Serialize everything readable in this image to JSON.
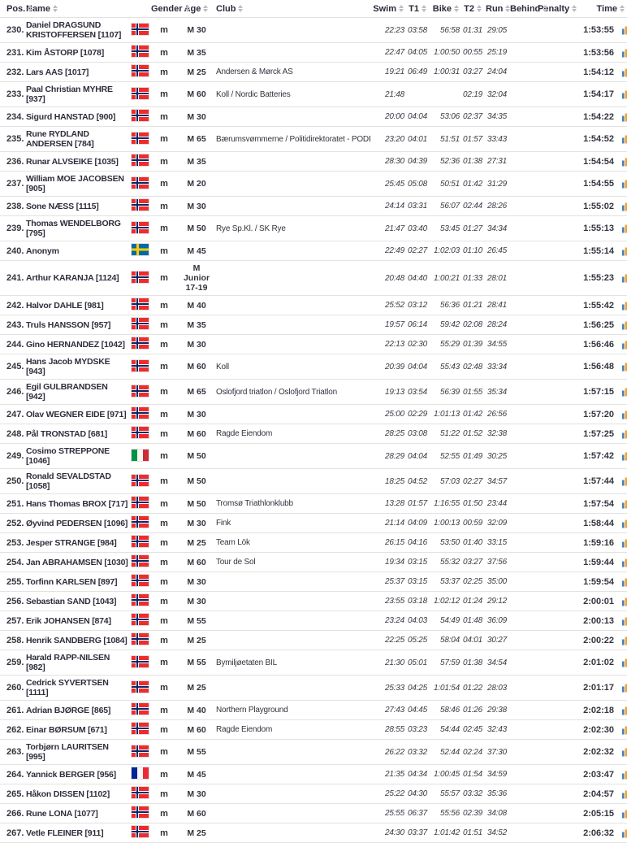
{
  "header": {
    "columns": [
      {
        "key": "pos",
        "label": "Pos."
      },
      {
        "key": "name",
        "label": "Name"
      },
      {
        "key": "flag",
        "label": ""
      },
      {
        "key": "gender",
        "label": "Gender"
      },
      {
        "key": "age",
        "label": "Age"
      },
      {
        "key": "club",
        "label": "Club"
      },
      {
        "key": "swim",
        "label": "Swim"
      },
      {
        "key": "t1",
        "label": "T1"
      },
      {
        "key": "bike",
        "label": "Bike"
      },
      {
        "key": "t2",
        "label": "T2"
      },
      {
        "key": "run",
        "label": "Run"
      },
      {
        "key": "behind",
        "label": "Behind"
      },
      {
        "key": "penalty",
        "label": "Penalty"
      },
      {
        "key": "time",
        "label": "Time"
      }
    ]
  },
  "colors": {
    "header_text": "#2b2b3a",
    "body_text": "#33333d",
    "row_border": "#e2e2e2",
    "sort_icon": "#bdbdbd",
    "flag_norway_red": "#ef2b2d",
    "flag_norway_blue": "#002868",
    "flag_sweden_blue": "#006aa7",
    "flag_sweden_yellow": "#fecc00",
    "flag_italy_green": "#009246",
    "flag_italy_red": "#ce2b37",
    "flag_france_blue": "#002395",
    "flag_france_red": "#ed2939",
    "detail_icon_blue": "#4a7ebb",
    "detail_icon_orange": "#f0a030",
    "detail_icon_red": "#d04a3a"
  },
  "rows": [
    {
      "pos": "230.",
      "name": "Daniel DRAGSUND KRISTOFFERSEN [1107]",
      "flag": "norway",
      "gender": "m",
      "age": "M 30",
      "club": "",
      "swim": "22:23",
      "t1": "03:58",
      "bike": "56:58",
      "t2": "01:31",
      "run": "29:05",
      "behind": "",
      "penalty": "",
      "time": "1:53:55"
    },
    {
      "pos": "231.",
      "name": "Kim ÅSTORP [1078]",
      "flag": "norway",
      "gender": "m",
      "age": "M 35",
      "club": "",
      "swim": "22:47",
      "t1": "04:05",
      "bike": "1:00:50",
      "t2": "00:55",
      "run": "25:19",
      "behind": "",
      "penalty": "",
      "time": "1:53:56"
    },
    {
      "pos": "232.",
      "name": "Lars AAS [1017]",
      "flag": "norway",
      "gender": "m",
      "age": "M 25",
      "club": "Andersen & Mørck AS",
      "swim": "19:21",
      "t1": "06:49",
      "bike": "1:00:31",
      "t2": "03:27",
      "run": "24:04",
      "behind": "",
      "penalty": "",
      "time": "1:54:12"
    },
    {
      "pos": "233.",
      "name": "Paal Christian MYHRE [937]",
      "flag": "norway",
      "gender": "m",
      "age": "M 60",
      "club": "Koll / Nordic Batteries",
      "swim": "21:48",
      "t1": "",
      "bike": "",
      "t2": "02:19",
      "run": "32:04",
      "behind": "",
      "penalty": "",
      "time": "1:54:17"
    },
    {
      "pos": "234.",
      "name": "Sigurd HANSTAD [900]",
      "flag": "norway",
      "gender": "m",
      "age": "M 30",
      "club": "",
      "swim": "20:00",
      "t1": "04:04",
      "bike": "53:06",
      "t2": "02:37",
      "run": "34:35",
      "behind": "",
      "penalty": "",
      "time": "1:54:22"
    },
    {
      "pos": "235.",
      "name": "Rune RYDLAND ANDERSEN [784]",
      "flag": "norway",
      "gender": "m",
      "age": "M 65",
      "club": "Bærumsvømmerne / Politidirektoratet - PODBIL",
      "swim": "23:20",
      "t1": "04:01",
      "bike": "51:51",
      "t2": "01:57",
      "run": "33:43",
      "behind": "",
      "penalty": "",
      "time": "1:54:52"
    },
    {
      "pos": "236.",
      "name": "Runar ALVSEIKE [1035]",
      "flag": "norway",
      "gender": "m",
      "age": "M 35",
      "club": "",
      "swim": "28:30",
      "t1": "04:39",
      "bike": "52:36",
      "t2": "01:38",
      "run": "27:31",
      "behind": "",
      "penalty": "",
      "time": "1:54:54"
    },
    {
      "pos": "237.",
      "name": "William MOE JACOBSEN [905]",
      "flag": "norway",
      "gender": "m",
      "age": "M 20",
      "club": "",
      "swim": "25:45",
      "t1": "05:08",
      "bike": "50:51",
      "t2": "01:42",
      "run": "31:29",
      "behind": "",
      "penalty": "",
      "time": "1:54:55"
    },
    {
      "pos": "238.",
      "name": "Sone NÆSS [1115]",
      "flag": "norway",
      "gender": "m",
      "age": "M 30",
      "club": "",
      "swim": "24:14",
      "t1": "03:31",
      "bike": "56:07",
      "t2": "02:44",
      "run": "28:26",
      "behind": "",
      "penalty": "",
      "time": "1:55:02"
    },
    {
      "pos": "239.",
      "name": "Thomas WENDELBORG [795]",
      "flag": "norway",
      "gender": "m",
      "age": "M 50",
      "club": "Rye Sp.Kl. / SK Rye",
      "swim": "21:47",
      "t1": "03:40",
      "bike": "53:45",
      "t2": "01:27",
      "run": "34:34",
      "behind": "",
      "penalty": "",
      "time": "1:55:13"
    },
    {
      "pos": "240.",
      "name": "Anonym",
      "flag": "sweden",
      "gender": "m",
      "age": "M 45",
      "club": "",
      "swim": "22:49",
      "t1": "02:27",
      "bike": "1:02:03",
      "t2": "01:10",
      "run": "26:45",
      "behind": "",
      "penalty": "",
      "time": "1:55:14"
    },
    {
      "pos": "241.",
      "name": "Arthur KARANJA [1124]",
      "flag": "norway",
      "gender": "m",
      "age": "M Junior 17-19",
      "club": "",
      "swim": "20:48",
      "t1": "04:40",
      "bike": "1:00:21",
      "t2": "01:33",
      "run": "28:01",
      "behind": "",
      "penalty": "",
      "time": "1:55:23"
    },
    {
      "pos": "242.",
      "name": "Halvor DAHLE [981]",
      "flag": "norway",
      "gender": "m",
      "age": "M 40",
      "club": "",
      "swim": "25:52",
      "t1": "03:12",
      "bike": "56:36",
      "t2": "01:21",
      "run": "28:41",
      "behind": "",
      "penalty": "",
      "time": "1:55:42"
    },
    {
      "pos": "243.",
      "name": "Truls HANSSON [957]",
      "flag": "norway",
      "gender": "m",
      "age": "M 35",
      "club": "",
      "swim": "19:57",
      "t1": "06:14",
      "bike": "59:42",
      "t2": "02:08",
      "run": "28:24",
      "behind": "",
      "penalty": "",
      "time": "1:56:25"
    },
    {
      "pos": "244.",
      "name": "Gino HERNANDEZ [1042]",
      "flag": "norway",
      "gender": "m",
      "age": "M 30",
      "club": "",
      "swim": "22:13",
      "t1": "02:30",
      "bike": "55:29",
      "t2": "01:39",
      "run": "34:55",
      "behind": "",
      "penalty": "",
      "time": "1:56:46"
    },
    {
      "pos": "245.",
      "name": "Hans Jacob MYDSKE [943]",
      "flag": "norway",
      "gender": "m",
      "age": "M 60",
      "club": "Koll",
      "swim": "20:39",
      "t1": "04:04",
      "bike": "55:43",
      "t2": "02:48",
      "run": "33:34",
      "behind": "",
      "penalty": "",
      "time": "1:56:48"
    },
    {
      "pos": "246.",
      "name": "Egil GULBRANDSEN [942]",
      "flag": "norway",
      "gender": "m",
      "age": "M 65",
      "club": "Oslofjord triatlon / Oslofjord Triatlon",
      "swim": "19:13",
      "t1": "03:54",
      "bike": "56:39",
      "t2": "01:55",
      "run": "35:34",
      "behind": "",
      "penalty": "",
      "time": "1:57:15"
    },
    {
      "pos": "247.",
      "name": "Olav WEGNER EIDE [971]",
      "flag": "norway",
      "gender": "m",
      "age": "M 30",
      "club": "",
      "swim": "25:00",
      "t1": "02:29",
      "bike": "1:01:13",
      "t2": "01:42",
      "run": "26:56",
      "behind": "",
      "penalty": "",
      "time": "1:57:20"
    },
    {
      "pos": "248.",
      "name": "Pål TRONSTAD [681]",
      "flag": "norway",
      "gender": "m",
      "age": "M 60",
      "club": "Ragde Eiendom",
      "swim": "28:25",
      "t1": "03:08",
      "bike": "51:22",
      "t2": "01:52",
      "run": "32:38",
      "behind": "",
      "penalty": "",
      "time": "1:57:25"
    },
    {
      "pos": "249.",
      "name": "Cosimo STREPPONE [1046]",
      "flag": "italy",
      "gender": "m",
      "age": "M 50",
      "club": "",
      "swim": "28:29",
      "t1": "04:04",
      "bike": "52:55",
      "t2": "01:49",
      "run": "30:25",
      "behind": "",
      "penalty": "",
      "time": "1:57:42"
    },
    {
      "pos": "250.",
      "name": "Ronald SEVALDSTAD [1058]",
      "flag": "norway",
      "gender": "m",
      "age": "M 50",
      "club": "",
      "swim": "18:25",
      "t1": "04:52",
      "bike": "57:03",
      "t2": "02:27",
      "run": "34:57",
      "behind": "",
      "penalty": "",
      "time": "1:57:44"
    },
    {
      "pos": "251.",
      "name": "Hans Thomas BROX [717]",
      "flag": "norway",
      "gender": "m",
      "age": "M 50",
      "club": "Tromsø Triathlonklubb",
      "swim": "13:28",
      "t1": "01:57",
      "bike": "1:16:55",
      "t2": "01:50",
      "run": "23:44",
      "behind": "",
      "penalty": "",
      "time": "1:57:54"
    },
    {
      "pos": "252.",
      "name": "Øyvind PEDERSEN [1096]",
      "flag": "norway",
      "gender": "m",
      "age": "M 30",
      "club": "Fink",
      "swim": "21:14",
      "t1": "04:09",
      "bike": "1:00:13",
      "t2": "00:59",
      "run": "32:09",
      "behind": "",
      "penalty": "",
      "time": "1:58:44"
    },
    {
      "pos": "253.",
      "name": "Jesper STRANGE [984]",
      "flag": "norway",
      "gender": "m",
      "age": "M 25",
      "club": "Team Lök",
      "swim": "26:15",
      "t1": "04:16",
      "bike": "53:50",
      "t2": "01:40",
      "run": "33:15",
      "behind": "",
      "penalty": "",
      "time": "1:59:16"
    },
    {
      "pos": "254.",
      "name": "Jan ABRAHAMSEN [1030]",
      "flag": "norway",
      "gender": "m",
      "age": "M 60",
      "club": "Tour de Sol",
      "swim": "19:34",
      "t1": "03:15",
      "bike": "55:32",
      "t2": "03:27",
      "run": "37:56",
      "behind": "",
      "penalty": "",
      "time": "1:59:44"
    },
    {
      "pos": "255.",
      "name": "Torfinn KARLSEN [897]",
      "flag": "norway",
      "gender": "m",
      "age": "M 30",
      "club": "",
      "swim": "25:37",
      "t1": "03:15",
      "bike": "53:37",
      "t2": "02:25",
      "run": "35:00",
      "behind": "",
      "penalty": "",
      "time": "1:59:54"
    },
    {
      "pos": "256.",
      "name": "Sebastian SAND [1043]",
      "flag": "norway",
      "gender": "m",
      "age": "M 30",
      "club": "",
      "swim": "23:55",
      "t1": "03:18",
      "bike": "1:02:12",
      "t2": "01:24",
      "run": "29:12",
      "behind": "",
      "penalty": "",
      "time": "2:00:01"
    },
    {
      "pos": "257.",
      "name": "Erik JOHANSEN [874]",
      "flag": "norway",
      "gender": "m",
      "age": "M 55",
      "club": "",
      "swim": "23:24",
      "t1": "04:03",
      "bike": "54:49",
      "t2": "01:48",
      "run": "36:09",
      "behind": "",
      "penalty": "",
      "time": "2:00:13"
    },
    {
      "pos": "258.",
      "name": "Henrik SANDBERG [1084]",
      "flag": "norway",
      "gender": "m",
      "age": "M 25",
      "club": "",
      "swim": "22:25",
      "t1": "05:25",
      "bike": "58:04",
      "t2": "04:01",
      "run": "30:27",
      "behind": "",
      "penalty": "",
      "time": "2:00:22"
    },
    {
      "pos": "259.",
      "name": "Harald RAPP-NILSEN [982]",
      "flag": "norway",
      "gender": "m",
      "age": "M 55",
      "club": "Bymiljøetaten BIL",
      "swim": "21:30",
      "t1": "05:01",
      "bike": "57:59",
      "t2": "01:38",
      "run": "34:54",
      "behind": "",
      "penalty": "",
      "time": "2:01:02"
    },
    {
      "pos": "260.",
      "name": "Cedrick SYVERTSEN [1111]",
      "flag": "norway",
      "gender": "m",
      "age": "M 25",
      "club": "",
      "swim": "25:33",
      "t1": "04:25",
      "bike": "1:01:54",
      "t2": "01:22",
      "run": "28:03",
      "behind": "",
      "penalty": "",
      "time": "2:01:17"
    },
    {
      "pos": "261.",
      "name": "Adrian BJØRGE [865]",
      "flag": "norway",
      "gender": "m",
      "age": "M 40",
      "club": "Northern Playground",
      "swim": "27:43",
      "t1": "04:45",
      "bike": "58:46",
      "t2": "01:26",
      "run": "29:38",
      "behind": "",
      "penalty": "",
      "time": "2:02:18"
    },
    {
      "pos": "262.",
      "name": "Einar BØRSUM [671]",
      "flag": "norway",
      "gender": "m",
      "age": "M 60",
      "club": "Ragde Eiendom",
      "swim": "28:55",
      "t1": "03:23",
      "bike": "54:44",
      "t2": "02:45",
      "run": "32:43",
      "behind": "",
      "penalty": "",
      "time": "2:02:30"
    },
    {
      "pos": "263.",
      "name": "Torbjørn LAURITSEN [995]",
      "flag": "norway",
      "gender": "m",
      "age": "M 55",
      "club": "",
      "swim": "26:22",
      "t1": "03:32",
      "bike": "52:44",
      "t2": "02:24",
      "run": "37:30",
      "behind": "",
      "penalty": "",
      "time": "2:02:32"
    },
    {
      "pos": "264.",
      "name": "Yannick BERGER [956]",
      "flag": "france",
      "gender": "m",
      "age": "M 45",
      "club": "",
      "swim": "21:35",
      "t1": "04:34",
      "bike": "1:00:45",
      "t2": "01:54",
      "run": "34:59",
      "behind": "",
      "penalty": "",
      "time": "2:03:47"
    },
    {
      "pos": "265.",
      "name": "Håkon DISSEN [1102]",
      "flag": "norway",
      "gender": "m",
      "age": "M 30",
      "club": "",
      "swim": "25:22",
      "t1": "04:30",
      "bike": "55:57",
      "t2": "03:32",
      "run": "35:36",
      "behind": "",
      "penalty": "",
      "time": "2:04:57"
    },
    {
      "pos": "266.",
      "name": "Rune LONA [1077]",
      "flag": "norway",
      "gender": "m",
      "age": "M 60",
      "club": "",
      "swim": "25:55",
      "t1": "06:37",
      "bike": "55:56",
      "t2": "02:39",
      "run": "34:08",
      "behind": "",
      "penalty": "",
      "time": "2:05:15"
    },
    {
      "pos": "267.",
      "name": "Vetle FLEINER [911]",
      "flag": "norway",
      "gender": "m",
      "age": "M 25",
      "club": "",
      "swim": "24:30",
      "t1": "03:37",
      "bike": "1:01:42",
      "t2": "01:51",
      "run": "34:52",
      "behind": "",
      "penalty": "",
      "time": "2:06:32"
    }
  ]
}
